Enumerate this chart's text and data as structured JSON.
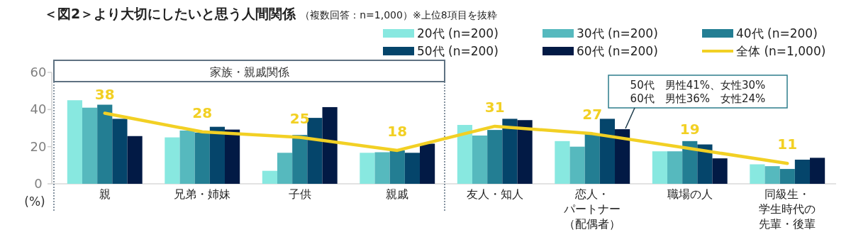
{
  "chart_data": {
    "type": "bar",
    "title": "＜図2＞より大切にしたいと思う人間関係",
    "subtitle": "（複数回答：n=1,000）※上位8項目を抜粋",
    "ylabel": "(%)",
    "categories": [
      "親",
      "兄弟・姉妹",
      "子供",
      "親戚",
      "友人・知人",
      "恋人・パートナー（配偶者）",
      "職場の人",
      "同級生・学生時代の先輩・後輩"
    ],
    "series": [
      {
        "name": "20代 (n=200)",
        "color": "#88e8e0",
        "values": [
          45,
          25,
          7,
          16.7,
          31.7,
          23,
          17.5,
          10.5
        ]
      },
      {
        "name": "30代 (n=200)",
        "color": "#56b9be",
        "values": [
          41,
          28.7,
          16.7,
          17,
          26,
          20,
          17.5,
          9.5
        ]
      },
      {
        "name": "40代 (n=200)",
        "color": "#237e93",
        "values": [
          42.6,
          27.6,
          26.3,
          18,
          29,
          27,
          23,
          8
        ]
      },
      {
        "name": "50代 (n=200)",
        "color": "#05456b",
        "values": [
          35,
          30.7,
          35.5,
          16.7,
          35,
          35,
          21.2,
          13
        ]
      },
      {
        "name": "60代 (n=200)",
        "color": "#021a45",
        "values": [
          25.7,
          29.2,
          41.3,
          21.6,
          34.3,
          29.4,
          13.7,
          14
        ]
      },
      {
        "name": "全体 (n=1,000)",
        "type": "line",
        "color": "#f2d024",
        "values": [
          38,
          28,
          25,
          18,
          31,
          27,
          19,
          11
        ],
        "value_labels": [
          "38",
          "28",
          "25",
          "18",
          "31",
          "27",
          "19",
          "11"
        ]
      }
    ],
    "ylim": [
      0,
      60
    ],
    "yticks": [
      0,
      20,
      40,
      60
    ],
    "grid": false,
    "legend": "top right",
    "bands": [
      {
        "axis": "x",
        "from": "親",
        "to": "親戚",
        "label": "家族・親戚関係",
        "color": "#5f7282"
      }
    ],
    "annotations": [
      "50代　男性41%、女性30%\n60代　男性36%　女性24%"
    ]
  }
}
